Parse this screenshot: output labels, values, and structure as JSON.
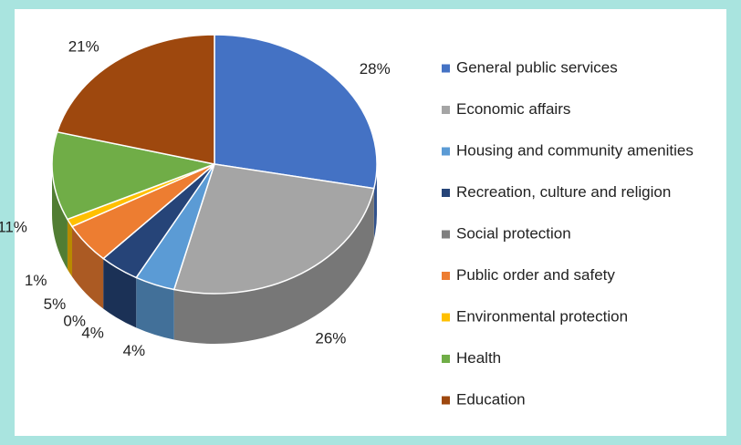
{
  "chart_data": {
    "type": "pie3d",
    "categories": [
      "General public services",
      "Economic affairs",
      "Housing and community amenities",
      "Recreation, culture and religion",
      "Social protection",
      "Public order and safety",
      "Environmental protection",
      "Health",
      "Education"
    ],
    "values": [
      28,
      26,
      4,
      4,
      0,
      5,
      1,
      11,
      21
    ],
    "value_labels": [
      "28%",
      "26%",
      "4%",
      "4%",
      "0%",
      "5%",
      "1%",
      "11%",
      "21%"
    ],
    "colors": [
      "#4472c4",
      "#a5a5a5",
      "#5b9bd5",
      "#264478",
      "#7f7f7f",
      "#ed7d31",
      "#ffc000",
      "#70ad47",
      "#9e480e"
    ],
    "legend": "right"
  }
}
